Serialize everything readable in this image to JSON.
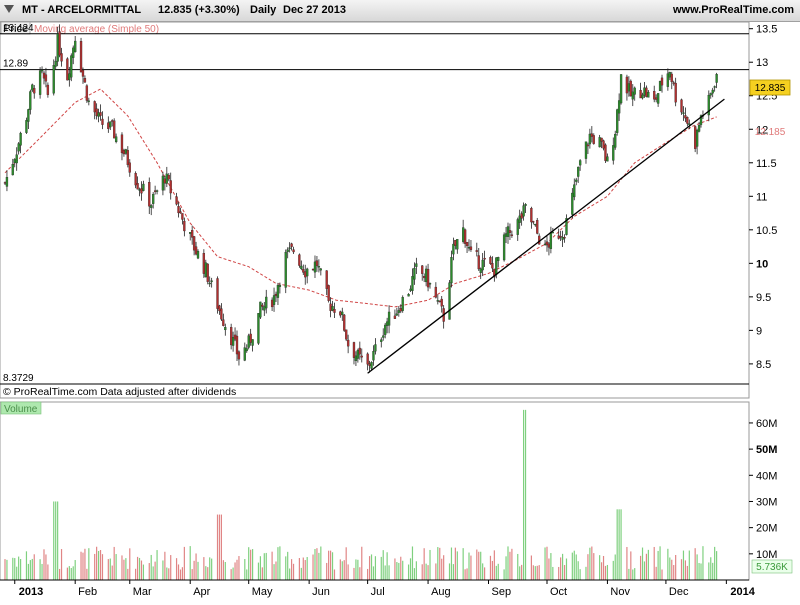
{
  "header": {
    "symbol_title": "MT - ARCELORMITTAL",
    "last_change": "12.835 (+3.30%)",
    "period": "Daily",
    "date": "Dec 27 2013",
    "site": "www.ProRealTime.com"
  },
  "price_panel": {
    "label": "Price",
    "ma_label": "Moving average (Simple 50)",
    "footer_note": "© ProRealTime.com  Data adjusted after dividends",
    "last_price_tag": "12.835",
    "ma_value_tag": "12.185",
    "level_labels": [
      "13.424",
      "12.89",
      "8.3729"
    ]
  },
  "volume_panel": {
    "label": "Volume",
    "last_volume_tag": "5.736K"
  },
  "colors": {
    "up": "#2c8a2c",
    "down": "#b03030",
    "moving_average": "#d04545",
    "background": "#ffffff",
    "panel_bg": "#eef0fa",
    "price_tag_bg": "#f5d020",
    "volume_up": "#7fd07f",
    "volume_down": "#e08585"
  },
  "chart_data": {
    "type": "candlestick",
    "xlabel": "",
    "ylabel": "",
    "x_tick_labels": [
      "2013",
      "Feb",
      "Mar",
      "Apr",
      "May",
      "Jun",
      "Jul",
      "Aug",
      "Sep",
      "Oct",
      "Nov",
      "Dec",
      "2014"
    ],
    "price_axis": {
      "ylim": [
        8.2,
        13.6
      ],
      "ticks": [
        "8.5",
        "9",
        "9.5",
        "10",
        "10.5",
        "11",
        "11.5",
        "12",
        "12.5",
        "13",
        "13.5"
      ]
    },
    "volume_axis": {
      "ylim": [
        0,
        68
      ],
      "ticks": [
        "10M",
        "20M",
        "30M",
        "40M",
        "50M",
        "60M"
      ]
    },
    "horizontal_levels": [
      13.424,
      12.89,
      8.3729
    ],
    "trendline": {
      "from": {
        "date": "2013-07-01",
        "price": 8.36
      },
      "to": {
        "date": "2013-12-31",
        "price": 12.45
      }
    },
    "close_path": [
      {
        "date": "2012-12-27",
        "price": 11.2
      },
      {
        "date": "2013-01-02",
        "price": 11.7
      },
      {
        "date": "2013-01-07",
        "price": 12.2
      },
      {
        "date": "2013-01-10",
        "price": 12.6
      },
      {
        "date": "2013-01-15",
        "price": 12.8
      },
      {
        "date": "2013-01-18",
        "price": 12.5
      },
      {
        "date": "2013-01-23",
        "price": 13.3
      },
      {
        "date": "2013-01-28",
        "price": 12.8
      },
      {
        "date": "2013-02-01",
        "price": 13.4
      },
      {
        "date": "2013-02-05",
        "price": 12.8
      },
      {
        "date": "2013-02-08",
        "price": 12.4
      },
      {
        "date": "2013-02-14",
        "price": 12.1
      },
      {
        "date": "2013-02-20",
        "price": 12.0
      },
      {
        "date": "2013-02-27",
        "price": 11.6
      },
      {
        "date": "2013-03-05",
        "price": 11.2
      },
      {
        "date": "2013-03-12",
        "price": 10.9
      },
      {
        "date": "2013-03-19",
        "price": 11.3
      },
      {
        "date": "2013-03-26",
        "price": 10.8
      },
      {
        "date": "2013-04-02",
        "price": 10.3
      },
      {
        "date": "2013-04-09",
        "price": 9.9
      },
      {
        "date": "2013-04-16",
        "price": 9.3
      },
      {
        "date": "2013-04-22",
        "price": 8.9
      },
      {
        "date": "2013-04-26",
        "price": 8.6
      },
      {
        "date": "2013-05-01",
        "price": 8.8
      },
      {
        "date": "2013-05-07",
        "price": 9.3
      },
      {
        "date": "2013-05-14",
        "price": 9.5
      },
      {
        "date": "2013-05-20",
        "price": 10.1
      },
      {
        "date": "2013-05-24",
        "price": 10.2
      },
      {
        "date": "2013-05-30",
        "price": 9.9
      },
      {
        "date": "2013-06-05",
        "price": 10.0
      },
      {
        "date": "2013-06-11",
        "price": 9.4
      },
      {
        "date": "2013-06-17",
        "price": 9.3
      },
      {
        "date": "2013-06-21",
        "price": 8.8
      },
      {
        "date": "2013-06-26",
        "price": 8.6
      },
      {
        "date": "2013-07-01",
        "price": 8.45
      },
      {
        "date": "2013-07-05",
        "price": 8.7
      },
      {
        "date": "2013-07-10",
        "price": 9.1
      },
      {
        "date": "2013-07-16",
        "price": 9.3
      },
      {
        "date": "2013-07-22",
        "price": 9.6
      },
      {
        "date": "2013-07-26",
        "price": 9.9
      },
      {
        "date": "2013-07-31",
        "price": 9.8
      },
      {
        "date": "2013-08-06",
        "price": 9.4
      },
      {
        "date": "2013-08-09",
        "price": 9.2
      },
      {
        "date": "2013-08-14",
        "price": 10.2
      },
      {
        "date": "2013-08-19",
        "price": 10.5
      },
      {
        "date": "2013-08-23",
        "price": 10.1
      },
      {
        "date": "2013-08-29",
        "price": 10.0
      },
      {
        "date": "2013-09-04",
        "price": 9.9
      },
      {
        "date": "2013-09-10",
        "price": 10.4
      },
      {
        "date": "2013-09-16",
        "price": 10.6
      },
      {
        "date": "2013-09-20",
        "price": 10.8
      },
      {
        "date": "2013-09-25",
        "price": 10.5
      },
      {
        "date": "2013-09-30",
        "price": 10.2
      },
      {
        "date": "2013-10-04",
        "price": 10.4
      },
      {
        "date": "2013-10-10",
        "price": 10.5
      },
      {
        "date": "2013-10-15",
        "price": 11.1
      },
      {
        "date": "2013-10-18",
        "price": 11.5
      },
      {
        "date": "2013-10-23",
        "price": 11.9
      },
      {
        "date": "2013-10-28",
        "price": 11.8
      },
      {
        "date": "2013-11-01",
        "price": 11.5
      },
      {
        "date": "2013-11-05",
        "price": 12.0
      },
      {
        "date": "2013-11-08",
        "price": 12.8
      },
      {
        "date": "2013-11-13",
        "price": 12.5
      },
      {
        "date": "2013-11-19",
        "price": 12.6
      },
      {
        "date": "2013-11-25",
        "price": 12.4
      },
      {
        "date": "2013-11-29",
        "price": 12.7
      },
      {
        "date": "2013-12-03",
        "price": 12.9
      },
      {
        "date": "2013-12-06",
        "price": 12.5
      },
      {
        "date": "2013-12-11",
        "price": 12.2
      },
      {
        "date": "2013-12-16",
        "price": 11.8
      },
      {
        "date": "2013-12-19",
        "price": 12.2
      },
      {
        "date": "2013-12-23",
        "price": 12.4
      },
      {
        "date": "2013-12-27",
        "price": 12.835
      }
    ],
    "moving_average": [
      {
        "date": "2012-12-27",
        "value": 11.35
      },
      {
        "date": "2013-01-15",
        "value": 11.9
      },
      {
        "date": "2013-02-01",
        "value": 12.4
      },
      {
        "date": "2013-02-14",
        "value": 12.6
      },
      {
        "date": "2013-02-28",
        "value": 12.2
      },
      {
        "date": "2013-03-15",
        "value": 11.5
      },
      {
        "date": "2013-04-01",
        "value": 10.6
      },
      {
        "date": "2013-04-15",
        "value": 10.1
      },
      {
        "date": "2013-05-01",
        "value": 9.95
      },
      {
        "date": "2013-05-15",
        "value": 9.7
      },
      {
        "date": "2013-06-01",
        "value": 9.6
      },
      {
        "date": "2013-06-15",
        "value": 9.45
      },
      {
        "date": "2013-07-01",
        "value": 9.4
      },
      {
        "date": "2013-07-15",
        "value": 9.35
      },
      {
        "date": "2013-08-01",
        "value": 9.45
      },
      {
        "date": "2013-08-15",
        "value": 9.7
      },
      {
        "date": "2013-09-01",
        "value": 9.85
      },
      {
        "date": "2013-09-15",
        "value": 10.05
      },
      {
        "date": "2013-10-01",
        "value": 10.3
      },
      {
        "date": "2013-10-15",
        "value": 10.7
      },
      {
        "date": "2013-11-01",
        "value": 11.0
      },
      {
        "date": "2013-11-15",
        "value": 11.5
      },
      {
        "date": "2013-12-01",
        "value": 11.8
      },
      {
        "date": "2013-12-15",
        "value": 12.05
      },
      {
        "date": "2013-12-27",
        "value": 12.185
      }
    ],
    "volume_spikes": [
      {
        "date": "2013-01-22",
        "volume_millions": 30
      },
      {
        "date": "2013-04-16",
        "volume_millions": 25
      },
      {
        "date": "2013-09-20",
        "volume_millions": 65
      },
      {
        "date": "2013-11-07",
        "volume_millions": 27
      }
    ]
  }
}
